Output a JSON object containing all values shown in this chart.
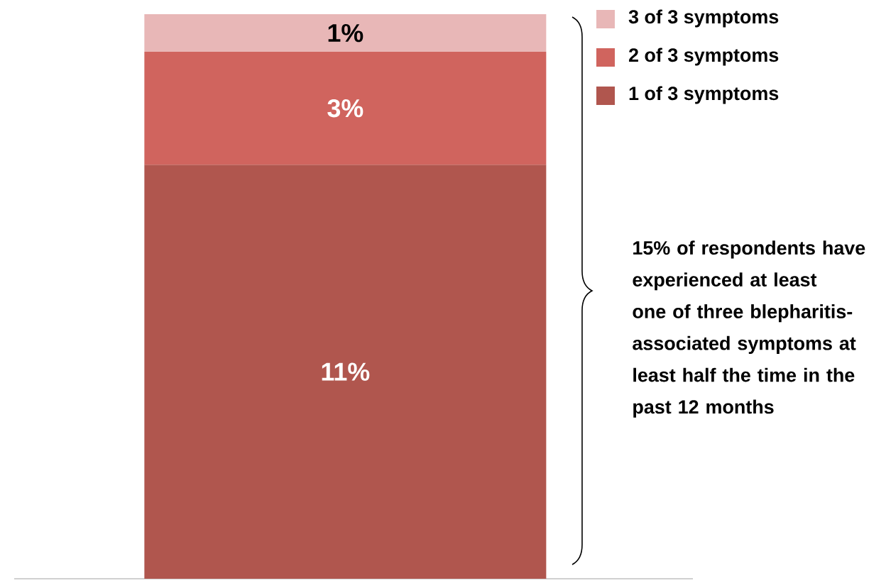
{
  "chart_data": {
    "type": "bar",
    "stacked": true,
    "categories": [
      null
    ],
    "series": [
      {
        "name": "1 of 3 symptoms",
        "color": "#b0564e",
        "values": [
          11
        ],
        "value_labels": [
          "11%"
        ]
      },
      {
        "name": "2 of 3 symptoms",
        "color": "#d0645e",
        "values": [
          3
        ],
        "value_labels": [
          "3%"
        ]
      },
      {
        "name": "3 of 3 symptoms",
        "color": "#e8b7b7",
        "values": [
          1
        ],
        "value_labels": [
          "1%"
        ]
      }
    ],
    "legend": "top right",
    "annotations": [
      "15% of respondents have experienced at least one of three blepharitis-associated symptoms at least half the time in the past 12 months"
    ]
  }
}
